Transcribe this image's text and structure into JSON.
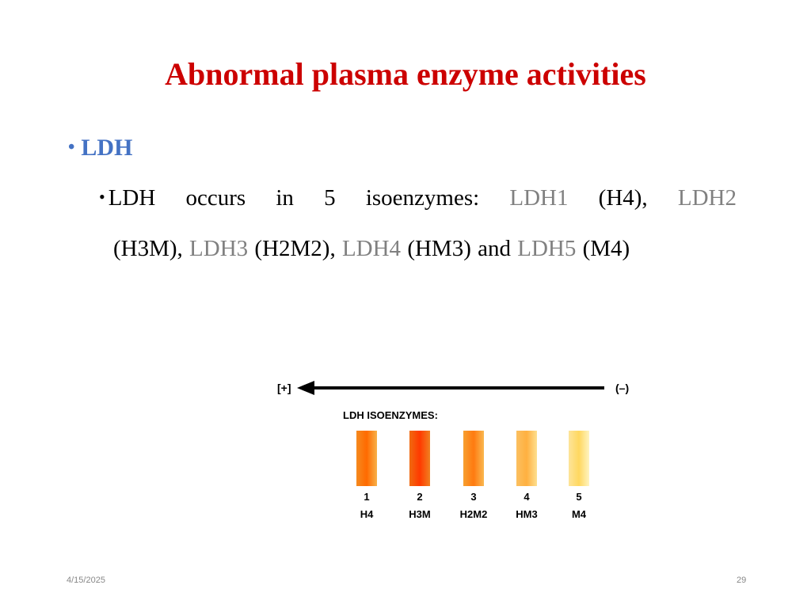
{
  "slide": {
    "title": "Abnormal plasma enzyme activities",
    "bullet": "LDH",
    "line1": [
      {
        "text": "LDH",
        "color": "#000000"
      },
      {
        "text": "occurs",
        "color": "#000000"
      },
      {
        "text": "in",
        "color": "#000000"
      },
      {
        "text": "5",
        "color": "#000000"
      },
      {
        "text": "isoenzymes:",
        "color": "#000000"
      },
      {
        "text": "LDH1",
        "color": "#808080"
      },
      {
        "text": "(H4),",
        "color": "#000000"
      },
      {
        "text": "LDH2",
        "color": "#808080"
      }
    ],
    "line2": [
      {
        "text": "(H3M),",
        "color": "#000000"
      },
      {
        "text": "LDH3",
        "color": "#808080"
      },
      {
        "text": "(H2M2),",
        "color": "#000000"
      },
      {
        "text": "LDH4",
        "color": "#808080"
      },
      {
        "text": "(HM3) and",
        "color": "#000000"
      },
      {
        "text": "LDH5",
        "color": "#808080"
      },
      {
        "text": "(M4)",
        "color": "#000000"
      }
    ]
  },
  "figure": {
    "plus_label": "[+]",
    "minus_label": "(–)",
    "heading": "LDH ISOENZYMES:",
    "bands": [
      {
        "number": "1",
        "label": "H4",
        "colors": [
          "#f58a1f",
          "#ff6a00",
          "#f7b24a"
        ]
      },
      {
        "number": "2",
        "label": "H3M",
        "colors": [
          "#f06a10",
          "#ff3a00",
          "#f08020"
        ]
      },
      {
        "number": "3",
        "label": "H2M2",
        "colors": [
          "#f7a030",
          "#ff7a10",
          "#f9b850"
        ]
      },
      {
        "number": "4",
        "label": "HM3",
        "colors": [
          "#fbc060",
          "#ffb040",
          "#fde090"
        ]
      },
      {
        "number": "5",
        "label": "M4",
        "colors": [
          "#fde49a",
          "#ffd860",
          "#fff3c0"
        ]
      }
    ]
  },
  "footer": {
    "date": "4/15/2025",
    "page": "29"
  }
}
